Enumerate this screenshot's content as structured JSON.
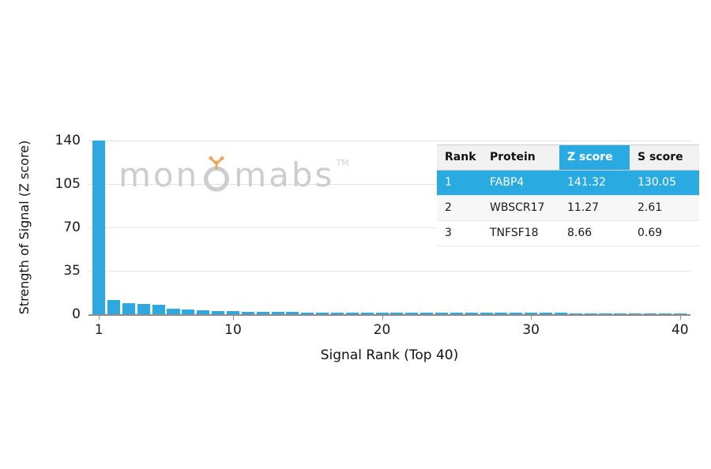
{
  "watermark": {
    "text_left": "mon",
    "text_right": "mabs",
    "tm": "TM"
  },
  "chart_data": {
    "type": "bar",
    "x": [
      1,
      2,
      3,
      4,
      5,
      6,
      7,
      8,
      9,
      10,
      11,
      12,
      13,
      14,
      15,
      16,
      17,
      18,
      19,
      20,
      21,
      22,
      23,
      24,
      25,
      26,
      27,
      28,
      29,
      30,
      31,
      32,
      33,
      34,
      35,
      36,
      37,
      38,
      39,
      40
    ],
    "values": [
      141.32,
      11.27,
      8.66,
      8.3,
      7.9,
      4.4,
      3.7,
      3.1,
      2.6,
      2.3,
      2.0,
      1.85,
      1.75,
      1.65,
      1.55,
      1.5,
      1.45,
      1.4,
      1.35,
      1.3,
      1.27,
      1.24,
      1.21,
      1.18,
      1.15,
      1.12,
      1.1,
      1.07,
      1.05,
      1.02,
      1.0,
      0.98,
      0.96,
      0.94,
      0.92,
      0.9,
      0.88,
      0.86,
      0.84,
      0.82
    ],
    "bar_color": "#2fa8e1",
    "title": "",
    "xlabel": "Signal Rank (Top 40)",
    "ylabel": "Strength of Signal (Z score)",
    "ylim": [
      0,
      140
    ],
    "yticks": [
      0,
      35,
      70,
      105,
      140
    ],
    "xticks": [
      1,
      10,
      20,
      30,
      40
    ],
    "grid": "horizontal-light",
    "legend": "none"
  },
  "table": {
    "headers": [
      "Rank",
      "Protein",
      "Z score",
      "S score"
    ],
    "highlight_color": "#29abe2",
    "rows": [
      [
        "1",
        "FABP4",
        "141.32",
        "130.05"
      ],
      [
        "2",
        "WBSCR17",
        "11.27",
        "2.61"
      ],
      [
        "3",
        "TNFSF18",
        "8.66",
        "0.69"
      ]
    ]
  }
}
